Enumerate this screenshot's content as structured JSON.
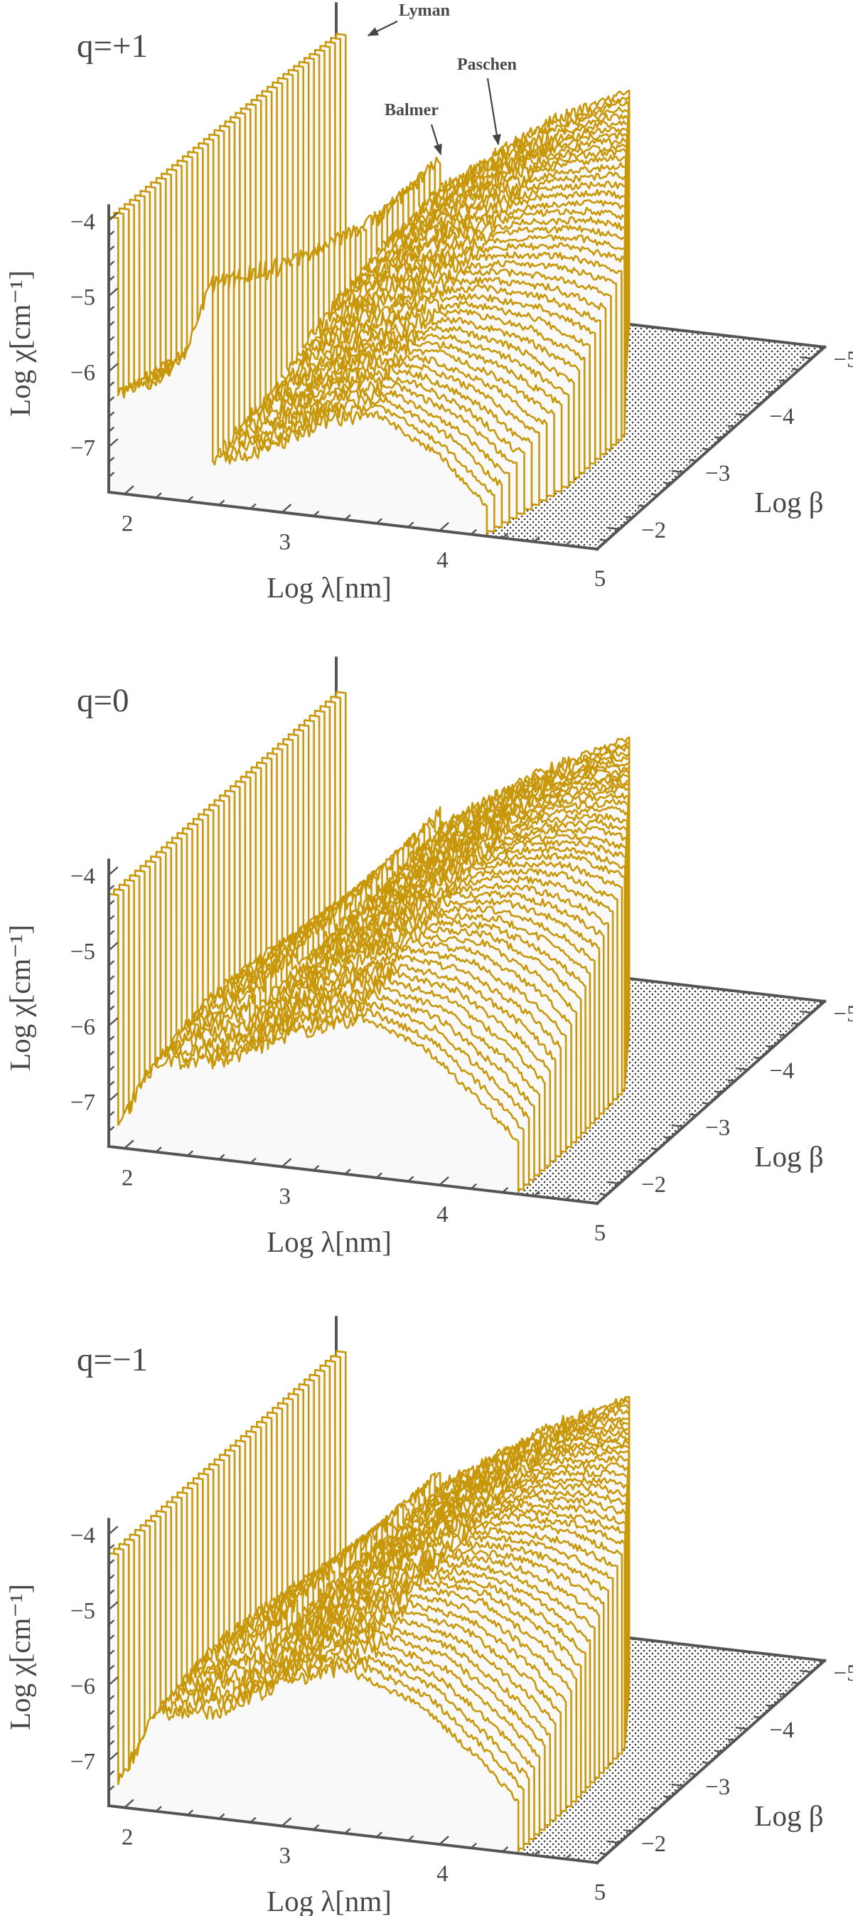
{
  "colors": {
    "curve": "#c9980a",
    "curtain_fill": "#f9f9f9",
    "axis": "#555555",
    "text": "#474747",
    "floor_dots": "#333333"
  },
  "chart_data": [
    {
      "type": "line",
      "style": "3d-waterfall",
      "panel_label": "q=+1",
      "xlabel": "Log λ[nm]",
      "ylabel": "Log χ[cm⁻¹]",
      "zlabel": "Log β",
      "xlim": [
        1.9,
        5
      ],
      "ylim": [
        -7.6,
        -3.8
      ],
      "beta_lim": [
        -1.65,
        -5.2
      ],
      "x_ticks": [
        {
          "value": 2,
          "label": "2"
        },
        {
          "value": 3,
          "label": "3"
        },
        {
          "value": 4,
          "label": "4"
        },
        {
          "value": 5,
          "label": "5"
        }
      ],
      "y_ticks": [
        {
          "value": -4,
          "label": "−4"
        },
        {
          "value": -5,
          "label": "−5"
        },
        {
          "value": -6,
          "label": "−6"
        },
        {
          "value": -7,
          "label": "−7"
        }
      ],
      "beta_ticks": [
        {
          "value": -2,
          "label": "−2"
        },
        {
          "value": -3,
          "label": "−3"
        },
        {
          "value": -4,
          "label": "−4"
        },
        {
          "value": -5,
          "label": "−5"
        }
      ],
      "annotations": [
        {
          "text": "Lyman"
        },
        {
          "text": "Balmer"
        },
        {
          "text": "Paschen"
        }
      ],
      "series": [
        {
          "beta": -1.65,
          "cutoff": 4.3,
          "points": [
            [
              1.9,
              -3.95
            ],
            [
              1.96,
              -3.95
            ],
            [
              1.96,
              -6.3
            ],
            [
              2.2,
              -6.1
            ],
            [
              2.4,
              -5.6
            ],
            [
              2.56,
              -4.6
            ],
            [
              2.56,
              -7.0
            ],
            [
              2.91,
              -6.8
            ],
            [
              3.3,
              -6.3
            ],
            [
              3.6,
              -6.15
            ],
            [
              4.0,
              -6.6
            ],
            [
              4.3,
              -7.2
            ]
          ]
        },
        {
          "beta": -2.54,
          "cutoff": 4.45,
          "points": [
            [
              1.9,
              -4.0
            ],
            [
              1.96,
              -4.0
            ],
            [
              1.96,
              -6.5
            ],
            [
              2.2,
              -6.3
            ],
            [
              2.4,
              -5.9
            ],
            [
              2.56,
              -5.1
            ],
            [
              2.56,
              -6.8
            ],
            [
              2.91,
              -6.4
            ],
            [
              3.3,
              -5.9
            ],
            [
              3.7,
              -5.8
            ],
            [
              4.1,
              -6.0
            ],
            [
              4.45,
              -6.4
            ]
          ]
        },
        {
          "beta": -3.43,
          "cutoff": 4.45,
          "points": [
            [
              1.9,
              -4.05
            ],
            [
              1.96,
              -4.05
            ],
            [
              1.96,
              -6.7
            ],
            [
              2.2,
              -6.4
            ],
            [
              2.56,
              -5.5
            ],
            [
              2.56,
              -6.4
            ],
            [
              2.91,
              -5.9
            ],
            [
              3.3,
              -5.5
            ],
            [
              3.7,
              -5.3
            ],
            [
              4.1,
              -5.2
            ],
            [
              4.45,
              -5.3
            ]
          ]
        },
        {
          "beta": -4.31,
          "cutoff": 4.1,
          "points": [
            [
              1.9,
              -4.1
            ],
            [
              1.96,
              -4.1
            ],
            [
              1.96,
              -6.85
            ],
            [
              2.2,
              -6.6
            ],
            [
              2.56,
              -5.75
            ],
            [
              2.56,
              -6.2
            ],
            [
              2.91,
              -5.7
            ],
            [
              3.3,
              -5.2
            ],
            [
              3.7,
              -4.8
            ],
            [
              4.1,
              -4.6
            ]
          ]
        },
        {
          "beta": -5.2,
          "cutoff": 3.76,
          "points": [
            [
              1.9,
              -4.2
            ],
            [
              1.96,
              -4.2
            ],
            [
              1.96,
              -7.0
            ],
            [
              2.2,
              -6.6
            ],
            [
              2.56,
              -5.7
            ],
            [
              2.56,
              -6.1
            ],
            [
              2.91,
              -5.56
            ],
            [
              3.3,
              -5.0
            ],
            [
              3.76,
              -4.5
            ]
          ]
        }
      ]
    },
    {
      "type": "line",
      "style": "3d-waterfall",
      "panel_label": "q=0",
      "xlabel": "Log λ[nm]",
      "ylabel": "Log χ[cm⁻¹]",
      "zlabel": "Log β",
      "xlim": [
        1.9,
        5
      ],
      "ylim": [
        -7.6,
        -3.8
      ],
      "beta_lim": [
        -1.65,
        -5.2
      ],
      "x_ticks": [
        {
          "value": 2,
          "label": "2"
        },
        {
          "value": 3,
          "label": "3"
        },
        {
          "value": 4,
          "label": "4"
        },
        {
          "value": 5,
          "label": "5"
        }
      ],
      "y_ticks": [
        {
          "value": -4,
          "label": "−4"
        },
        {
          "value": -5,
          "label": "−5"
        },
        {
          "value": -6,
          "label": "−6"
        },
        {
          "value": -7,
          "label": "−7"
        }
      ],
      "beta_ticks": [
        {
          "value": -2,
          "label": "−2"
        },
        {
          "value": -3,
          "label": "−3"
        },
        {
          "value": -4,
          "label": "−4"
        },
        {
          "value": -5,
          "label": "−5"
        }
      ],
      "series": [
        {
          "beta": -1.65,
          "cutoff": 4.5,
          "points": [
            [
              1.9,
              -4.25
            ],
            [
              1.96,
              -4.25
            ],
            [
              1.96,
              -7.3
            ],
            [
              2.2,
              -6.4
            ],
            [
              2.6,
              -6.3
            ],
            [
              3.0,
              -5.9
            ],
            [
              3.5,
              -5.5
            ],
            [
              3.9,
              -5.8
            ],
            [
              4.3,
              -6.5
            ],
            [
              4.5,
              -6.9
            ]
          ]
        },
        {
          "beta": -2.54,
          "cutoff": 4.5,
          "points": [
            [
              1.9,
              -4.25
            ],
            [
              1.96,
              -4.25
            ],
            [
              1.96,
              -6.9
            ],
            [
              2.2,
              -6.2
            ],
            [
              2.56,
              -5.9
            ],
            [
              2.56,
              -6.1
            ],
            [
              3.0,
              -5.6
            ],
            [
              3.5,
              -5.1
            ],
            [
              3.9,
              -5.1
            ],
            [
              4.3,
              -5.5
            ],
            [
              4.5,
              -5.9
            ]
          ]
        },
        {
          "beta": -3.43,
          "cutoff": 4.45,
          "points": [
            [
              1.9,
              -4.25
            ],
            [
              1.96,
              -4.25
            ],
            [
              1.96,
              -6.8
            ],
            [
              2.2,
              -6.3
            ],
            [
              2.56,
              -5.8
            ],
            [
              2.56,
              -6.0
            ],
            [
              2.91,
              -5.6
            ],
            [
              3.3,
              -5.0
            ],
            [
              3.7,
              -4.7
            ],
            [
              4.1,
              -4.6
            ],
            [
              4.45,
              -4.8
            ]
          ]
        },
        {
          "beta": -4.31,
          "cutoff": 4.12,
          "points": [
            [
              1.9,
              -4.25
            ],
            [
              1.96,
              -4.25
            ],
            [
              1.96,
              -6.9
            ],
            [
              2.2,
              -6.5
            ],
            [
              2.56,
              -5.8
            ],
            [
              2.56,
              -6.0
            ],
            [
              2.91,
              -5.5
            ],
            [
              3.3,
              -4.9
            ],
            [
              3.7,
              -4.5
            ],
            [
              4.12,
              -4.3
            ]
          ]
        },
        {
          "beta": -5.2,
          "cutoff": 3.76,
          "points": [
            [
              1.9,
              -4.25
            ],
            [
              1.96,
              -4.25
            ],
            [
              1.96,
              -7.0
            ],
            [
              2.2,
              -6.6
            ],
            [
              2.56,
              -5.7
            ],
            [
              2.56,
              -5.9
            ],
            [
              2.91,
              -5.4
            ],
            [
              3.3,
              -4.9
            ],
            [
              3.76,
              -4.4
            ]
          ]
        }
      ]
    },
    {
      "type": "line",
      "style": "3d-waterfall",
      "panel_label": "q=−1",
      "xlabel": "Log λ[nm]",
      "ylabel": "Log χ[cm⁻¹]",
      "zlabel": "Log β",
      "xlim": [
        1.9,
        5
      ],
      "ylim": [
        -7.6,
        -3.8
      ],
      "beta_lim": [
        -1.65,
        -5.2
      ],
      "x_ticks": [
        {
          "value": 2,
          "label": "2"
        },
        {
          "value": 3,
          "label": "3"
        },
        {
          "value": 4,
          "label": "4"
        },
        {
          "value": 5,
          "label": "5"
        }
      ],
      "y_ticks": [
        {
          "value": -4,
          "label": "−4"
        },
        {
          "value": -5,
          "label": "−5"
        },
        {
          "value": -6,
          "label": "−6"
        },
        {
          "value": -7,
          "label": "−7"
        }
      ],
      "beta_ticks": [
        {
          "value": -2,
          "label": "−2"
        },
        {
          "value": -3,
          "label": "−3"
        },
        {
          "value": -4,
          "label": "−4"
        },
        {
          "value": -5,
          "label": "−5"
        }
      ],
      "series": [
        {
          "beta": -1.65,
          "cutoff": 4.5,
          "points": [
            [
              1.9,
              -4.25
            ],
            [
              1.96,
              -4.25
            ],
            [
              1.96,
              -7.3
            ],
            [
              2.2,
              -6.3
            ],
            [
              2.6,
              -6.2
            ],
            [
              3.0,
              -5.7
            ],
            [
              3.4,
              -5.4
            ],
            [
              3.9,
              -5.8
            ],
            [
              4.3,
              -6.5
            ],
            [
              4.5,
              -6.9
            ]
          ]
        },
        {
          "beta": -2.54,
          "cutoff": 4.5,
          "points": [
            [
              1.9,
              -4.25
            ],
            [
              1.96,
              -4.25
            ],
            [
              1.96,
              -6.9
            ],
            [
              2.2,
              -6.1
            ],
            [
              2.56,
              -5.8
            ],
            [
              2.56,
              -6.0
            ],
            [
              3.0,
              -5.5
            ],
            [
              3.5,
              -5.0
            ],
            [
              3.9,
              -5.1
            ],
            [
              4.3,
              -5.6
            ],
            [
              4.5,
              -6.0
            ]
          ]
        },
        {
          "beta": -3.43,
          "cutoff": 4.45,
          "points": [
            [
              1.9,
              -4.25
            ],
            [
              1.96,
              -4.25
            ],
            [
              1.96,
              -6.8
            ],
            [
              2.2,
              -6.2
            ],
            [
              2.56,
              -5.7
            ],
            [
              2.56,
              -5.9
            ],
            [
              2.91,
              -5.5
            ],
            [
              3.3,
              -4.95
            ],
            [
              3.7,
              -4.7
            ],
            [
              4.1,
              -4.7
            ],
            [
              4.45,
              -4.9
            ]
          ]
        },
        {
          "beta": -4.31,
          "cutoff": 4.12,
          "points": [
            [
              1.9,
              -4.25
            ],
            [
              1.96,
              -4.25
            ],
            [
              1.96,
              -6.9
            ],
            [
              2.2,
              -6.4
            ],
            [
              2.56,
              -5.75
            ],
            [
              2.56,
              -5.95
            ],
            [
              2.91,
              -5.45
            ],
            [
              3.3,
              -4.9
            ],
            [
              3.7,
              -4.5
            ],
            [
              4.12,
              -4.35
            ]
          ]
        },
        {
          "beta": -5.2,
          "cutoff": 3.76,
          "points": [
            [
              1.9,
              -4.25
            ],
            [
              1.96,
              -4.25
            ],
            [
              1.96,
              -7.0
            ],
            [
              2.2,
              -6.6
            ],
            [
              2.56,
              -5.7
            ],
            [
              2.56,
              -5.9
            ],
            [
              2.91,
              -5.4
            ],
            [
              3.3,
              -4.9
            ],
            [
              3.76,
              -4.4
            ]
          ]
        }
      ]
    }
  ]
}
